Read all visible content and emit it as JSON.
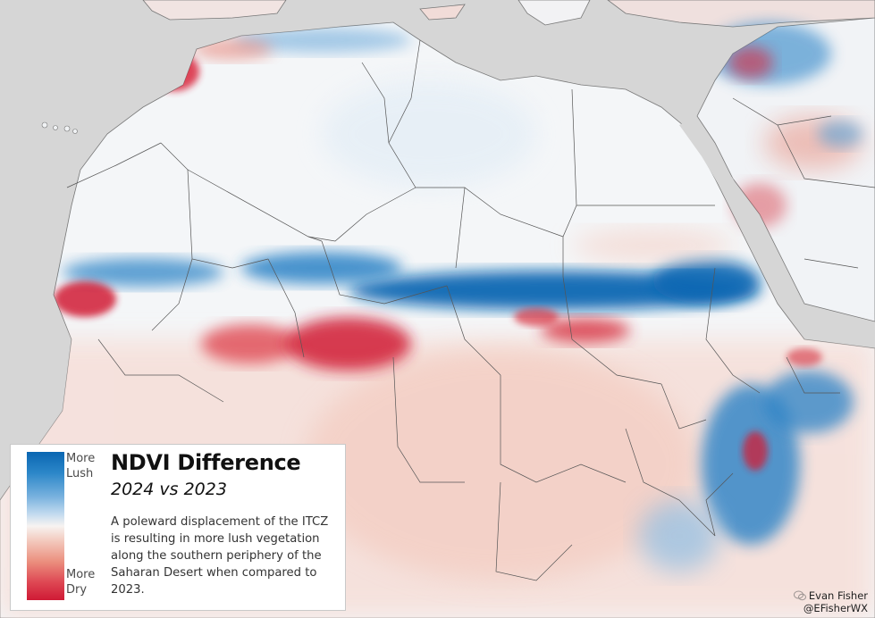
{
  "map": {
    "colors": {
      "water": "#d6d6d6",
      "land": "#f4f6f8",
      "lush_strong": "#0b67b3",
      "lush_light": "#9cc6e6",
      "neutral": "#f7f3f1",
      "dry_light": "#f2b7a8",
      "dry_strong": "#d11d35",
      "borders": "#555555"
    }
  },
  "legend": {
    "top_label": "More Lush",
    "bottom_label": "More Dry",
    "title": "NDVI Difference",
    "subtitle": "2024 vs 2023",
    "description": "A poleward displacement of the ITCZ is resulting in more lush vegetation along the southern periphery of the Saharan Desert when compared to 2023."
  },
  "credit": {
    "name": "Evan Fisher",
    "handle": "@EFisherWX"
  }
}
